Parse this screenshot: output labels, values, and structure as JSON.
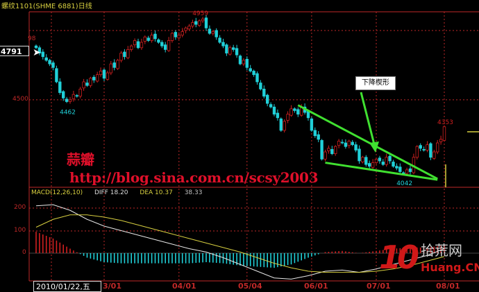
{
  "title": "螺纹1101(SHME 6881)日线",
  "crosshair_value": "4791",
  "cursor_date": "2010/01/22,五",
  "price_axis_labels": [
    "98",
    "4500"
  ],
  "macd_axis_labels": [
    "200",
    "100",
    "0"
  ],
  "macd_header": {
    "name": "MACD(12,26,10)",
    "diff": "DIFF 18.20",
    "dea": "DEA 10.37",
    "macd": "38.33"
  },
  "date_labels": [
    "3/01",
    "04/01",
    "05/04",
    "06/01",
    "07/01",
    "08/01"
  ],
  "annotation_label": "下降楔形",
  "watermark": {
    "line1": "蒜瓣",
    "line2": "http://blog.sina.com.cn/scsy2003"
  },
  "logo": {
    "number": "10",
    "cn": "拾荒网",
    "en": "Huang.CN"
  },
  "colors": {
    "up": "#d02020",
    "down": "#20d0d8",
    "wedge": "#40e030",
    "diff": "#e8e8e8",
    "dea": "#d8d040",
    "grid": "#c02828"
  },
  "chart_data": {
    "type": "candlestick",
    "title": "螺纹1101(SHME 6881)日线",
    "x_ticks": [
      "03/01",
      "04/01",
      "05/04",
      "06/01",
      "07/01",
      "08/01"
    ],
    "x_tick_index": [
      20,
      42,
      62,
      81,
      100,
      120
    ],
    "ylim": [
      4044,
      4990
    ],
    "y_ticks": [
      4500
    ],
    "close": [
      4790,
      4760,
      4740,
      4720,
      4700,
      4680,
      4600,
      4540,
      4510,
      4490,
      4500,
      4530,
      4520,
      4560,
      4600,
      4580,
      4620,
      4610,
      4640,
      4660,
      4620,
      4650,
      4700,
      4680,
      4720,
      4760,
      4740,
      4780,
      4800,
      4830,
      4790,
      4820,
      4850,
      4830,
      4860,
      4840,
      4820,
      4800,
      4780,
      4830,
      4870,
      4850,
      4860,
      4880,
      4900,
      4910,
      4930,
      4920,
      4940,
      4950,
      4900,
      4870,
      4880,
      4850,
      4820,
      4800,
      4760,
      4790,
      4780,
      4750,
      4700,
      4720,
      4680,
      4660,
      4640,
      4600,
      4560,
      4520,
      4480,
      4460,
      4420,
      4400,
      4330,
      4380,
      4420,
      4450,
      4440,
      4420,
      4460,
      4430,
      4400,
      4330,
      4300,
      4280,
      4170,
      4210,
      4230,
      4200,
      4240,
      4270,
      4260,
      4240,
      4270,
      4250,
      4220,
      4160,
      4180,
      4140,
      4130,
      4150,
      4170,
      4160,
      4140,
      4180,
      4160,
      4130,
      4120,
      4100,
      4090,
      4110,
      4100,
      4180,
      4240,
      4230,
      4220,
      4250,
      4180,
      4210,
      4260,
      4280,
      4350
    ],
    "annotations": [
      {
        "label": "4959",
        "index": 48,
        "value": 4959,
        "kind": "high"
      },
      {
        "label": "4462",
        "index": 9,
        "value": 4462,
        "kind": "low"
      },
      {
        "label": "4353",
        "index": 120,
        "value": 4353,
        "kind": "high"
      },
      {
        "label": "4042",
        "index": 108,
        "value": 4042,
        "kind": "low"
      }
    ],
    "wedge": {
      "label": "下降楔形",
      "upper": [
        [
          77,
          4470
        ],
        [
          118,
          4060
        ]
      ],
      "lower": [
        [
          85,
          4150
        ],
        [
          118,
          4055
        ]
      ]
    },
    "macd": {
      "params": "12,26,10",
      "ylim": [
        -125,
        290
      ],
      "y_ticks": [
        0,
        100,
        200
      ],
      "sample_index": [
        0,
        5,
        10,
        15,
        20,
        25,
        30,
        35,
        40,
        45,
        50,
        55,
        60,
        65,
        70,
        75,
        80,
        85,
        90,
        95,
        100,
        105,
        110,
        115,
        120
      ],
      "diff": [
        210,
        215,
        190,
        150,
        120,
        100,
        80,
        60,
        40,
        20,
        5,
        -20,
        -50,
        -80,
        -110,
        -115,
        -100,
        -80,
        -75,
        -85,
        -70,
        -50,
        -30,
        -10,
        20
      ],
      "dea": [
        115,
        150,
        170,
        170,
        160,
        145,
        125,
        105,
        85,
        65,
        45,
        25,
        5,
        -20,
        -45,
        -65,
        -80,
        -85,
        -85,
        -85,
        -80,
        -70,
        -55,
        -35,
        -15
      ]
    }
  }
}
